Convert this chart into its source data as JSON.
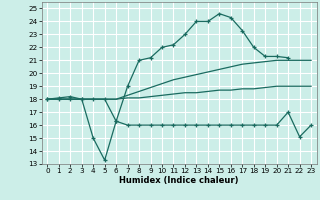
{
  "xlabel": "Humidex (Indice chaleur)",
  "xlim": [
    -0.5,
    23.5
  ],
  "ylim": [
    13,
    25.5
  ],
  "yticks": [
    13,
    14,
    15,
    16,
    17,
    18,
    19,
    20,
    21,
    22,
    23,
    24,
    25
  ],
  "xticks": [
    0,
    1,
    2,
    3,
    4,
    5,
    6,
    7,
    8,
    9,
    10,
    11,
    12,
    13,
    14,
    15,
    16,
    17,
    18,
    19,
    20,
    21,
    22,
    23
  ],
  "bg_color": "#cceee8",
  "grid_color": "#ffffff",
  "line_color": "#1a6b60",
  "line1_x": [
    0,
    1,
    2,
    3,
    4,
    5,
    6,
    7,
    8,
    9,
    10,
    11,
    12,
    13,
    14,
    15,
    16,
    17,
    18,
    19,
    20,
    21
  ],
  "line1_y": [
    18,
    18.1,
    18.2,
    18,
    18,
    18,
    16.3,
    19,
    21,
    21.2,
    22,
    22.2,
    23,
    24,
    24,
    24.6,
    24.3,
    23.3,
    22,
    21.3,
    21.3,
    21.2
  ],
  "line2_x": [
    0,
    1,
    2,
    3,
    4,
    5,
    6,
    7,
    8,
    9,
    10,
    11,
    12,
    13,
    14,
    15,
    16,
    17,
    18,
    19,
    20,
    21,
    22,
    23
  ],
  "line2_y": [
    18,
    18,
    18,
    18,
    18,
    18,
    18,
    18.3,
    18.6,
    18.9,
    19.2,
    19.5,
    19.7,
    19.9,
    20.1,
    20.3,
    20.5,
    20.7,
    20.8,
    20.9,
    21,
    21,
    21,
    21
  ],
  "line3_x": [
    0,
    1,
    2,
    3,
    4,
    5,
    6,
    7,
    8,
    9,
    10,
    11,
    12,
    13,
    14,
    15,
    16,
    17,
    18,
    19,
    20,
    21,
    22,
    23
  ],
  "line3_y": [
    18,
    18,
    18,
    18,
    18,
    18,
    18,
    18.1,
    18.1,
    18.2,
    18.3,
    18.4,
    18.5,
    18.5,
    18.6,
    18.7,
    18.7,
    18.8,
    18.8,
    18.9,
    19,
    19,
    19,
    19
  ],
  "line4_x": [
    0,
    1,
    2,
    3,
    4,
    5,
    6,
    7,
    8,
    9,
    10,
    11,
    12,
    13,
    14,
    15,
    16,
    17,
    18,
    19,
    20,
    21,
    22,
    23
  ],
  "line4_y": [
    18,
    18,
    18,
    18,
    15,
    13.3,
    16.3,
    16,
    16,
    16,
    16,
    16,
    16,
    16,
    16,
    16,
    16,
    16,
    16,
    16,
    16,
    17,
    15.1,
    16
  ]
}
